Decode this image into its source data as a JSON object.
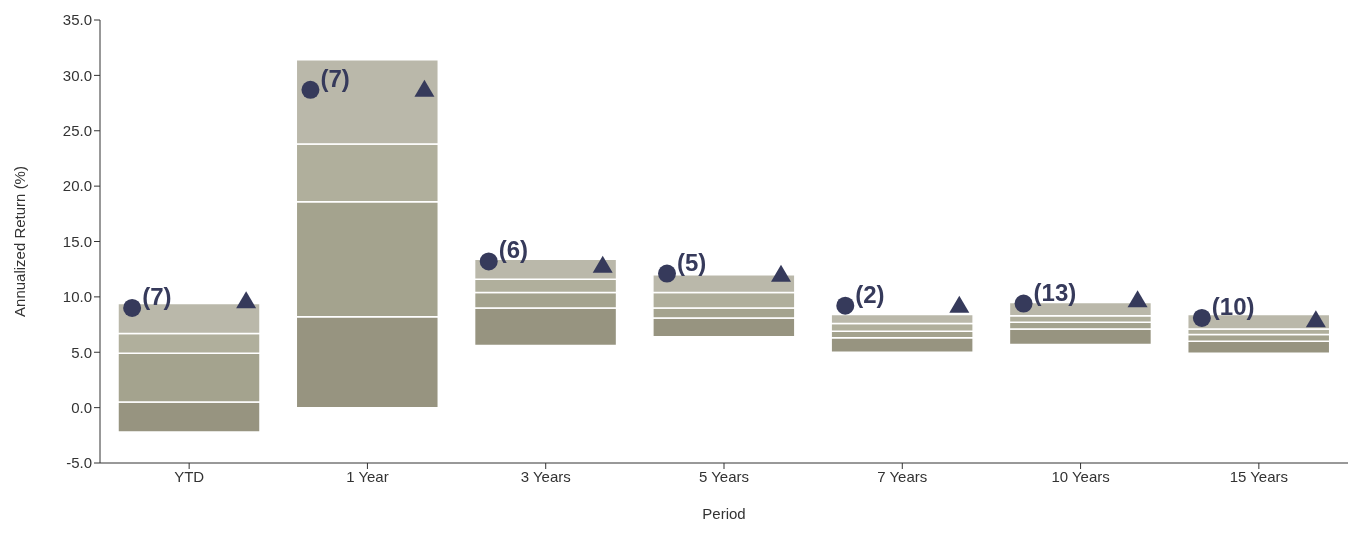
{
  "chart_data": {
    "type": "bar",
    "xlabel": "Period",
    "ylabel": "Annualized Return (%)",
    "categories": [
      "YTD",
      "1 Year",
      "3 Years",
      "5 Years",
      "7 Years",
      "10 Years",
      "15 Years"
    ],
    "stacked": true,
    "series": [
      {
        "color": "#979480",
        "base": [
          -2.2,
          0,
          5.6,
          6.4,
          5.0,
          5.7,
          4.9
        ],
        "values": [
          2.7,
          8.2,
          3.4,
          1.7,
          1.3,
          1.4,
          1.1
        ]
      },
      {
        "color": "#a4a38e",
        "values": [
          4.4,
          10.4,
          1.4,
          0.9,
          0.6,
          0.6,
          0.6
        ]
      },
      {
        "color": "#b0af9c",
        "values": [
          1.8,
          5.2,
          1.2,
          1.4,
          0.7,
          0.6,
          0.5
        ]
      },
      {
        "color": "#bab8aa",
        "values": [
          2.7,
          7.6,
          1.8,
          1.6,
          0.8,
          1.2,
          1.3
        ]
      },
      {
        "type": "scatter",
        "marker": "circle",
        "color": "#363a5b",
        "x": [
          "YTD",
          "1 Year",
          "3 Years",
          "5 Years",
          "7 Years",
          "10 Years",
          "15 Years"
        ],
        "values": [
          9.0,
          28.7,
          13.2,
          12.1,
          9.2,
          9.4,
          8.1
        ]
      },
      {
        "type": "scatter",
        "marker": "triangle",
        "color": "#363a5b",
        "x": [
          "YTD",
          "1 Year",
          "3 Years",
          "5 Years",
          "7 Years",
          "10 Years",
          "15 Years"
        ],
        "values": [
          9.6,
          28.7,
          12.8,
          12.0,
          9.2,
          9.7,
          7.9
        ]
      }
    ],
    "annotations": [
      "(7)",
      "(7)",
      "(6)",
      "(5)",
      "(2)",
      "(13)",
      "(10)"
    ],
    "ylim": [
      -5,
      35
    ],
    "yticks": [
      {
        "value": -5,
        "label": "-5.0"
      },
      {
        "value": 0,
        "label": "0.0"
      },
      {
        "value": 5,
        "label": "5.0"
      },
      {
        "value": 10,
        "label": "10.0"
      },
      {
        "value": 15,
        "label": "15.0"
      },
      {
        "value": 20,
        "label": "20.0"
      },
      {
        "value": 25,
        "label": "25.0"
      },
      {
        "value": 30,
        "label": "30.0"
      },
      {
        "value": 35,
        "label": "35.0"
      }
    ],
    "grid": false,
    "legend": false
  }
}
